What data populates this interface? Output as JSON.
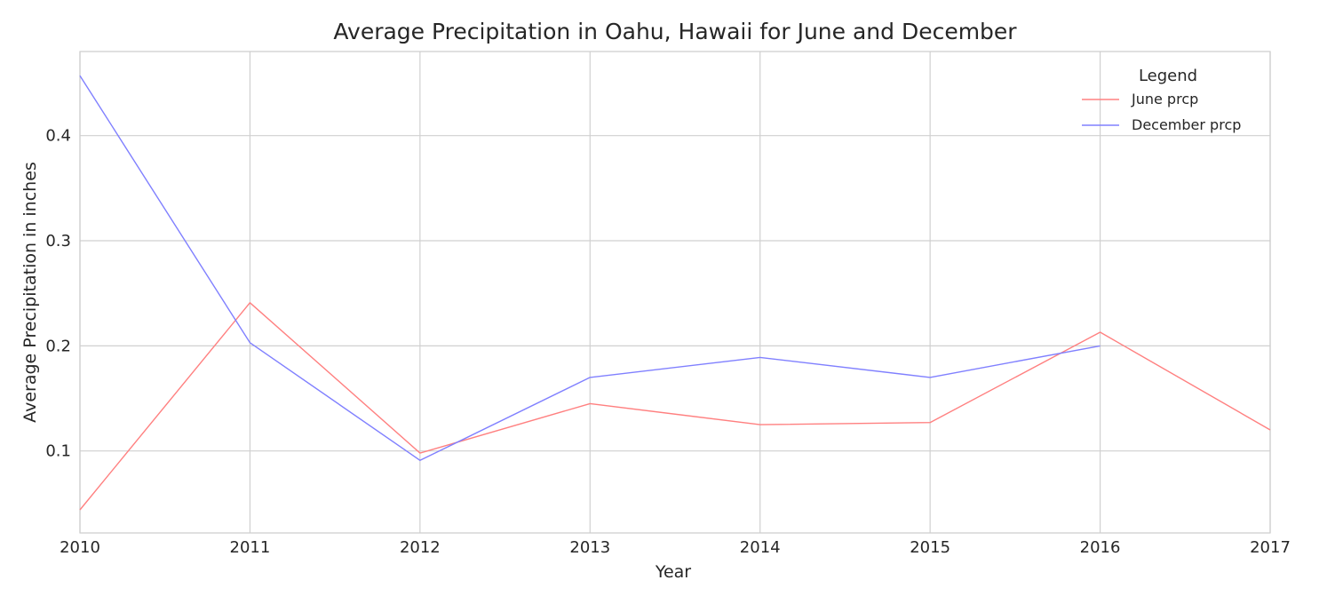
{
  "chart_data": {
    "type": "line",
    "title": "Average Precipitation in Oahu, Hawaii for June and December",
    "xlabel": "Year",
    "ylabel": "Average Precipitation in inches",
    "xlim": [
      2010,
      2017
    ],
    "ylim": [
      0.022,
      0.48
    ],
    "x_ticks": [
      2010,
      2011,
      2012,
      2013,
      2014,
      2015,
      2016,
      2017
    ],
    "x_tick_labels": [
      "2010",
      "2011",
      "2012",
      "2013",
      "2014",
      "2015",
      "2016",
      "2017"
    ],
    "y_ticks": [
      0.1,
      0.2,
      0.3,
      0.4
    ],
    "y_tick_labels": [
      "0.1",
      "0.2",
      "0.3",
      "0.4"
    ],
    "grid": true,
    "legend": {
      "title": "Legend",
      "position": "top-right"
    },
    "series": [
      {
        "name": "June prcp",
        "color": "#ff8080",
        "x": [
          2010,
          2011,
          2012,
          2013,
          2014,
          2015,
          2016,
          2017
        ],
        "y": [
          0.044,
          0.241,
          0.098,
          0.145,
          0.125,
          0.127,
          0.213,
          0.12
        ]
      },
      {
        "name": "December prcp",
        "color": "#8080ff",
        "x": [
          2010,
          2011,
          2012,
          2013,
          2014,
          2015,
          2016
        ],
        "y": [
          0.457,
          0.203,
          0.091,
          0.17,
          0.189,
          0.17,
          0.2
        ]
      }
    ]
  }
}
